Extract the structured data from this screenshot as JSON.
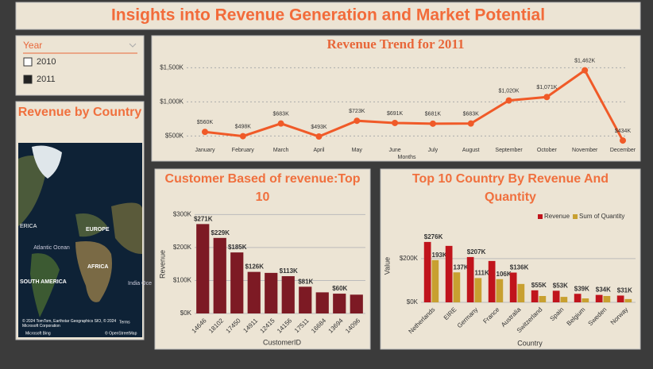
{
  "header": {
    "title": "Insights into Revenue Generation and Market Potential"
  },
  "slicer": {
    "title": "Year",
    "items": [
      "2010",
      "2011"
    ],
    "selected": "2011"
  },
  "map": {
    "title": "Revenue by Country",
    "labels": [
      "Atlantic Ocean",
      "EUROPE",
      "AFRICA",
      "SOUTH AMERICA",
      "India Oce",
      "ERICA"
    ],
    "credits": [
      "© 2024 TomTom, Earthstar Geographics SIO, © 2024 Microsoft Corporation",
      "Terms",
      "© OpenStreetMap",
      "Microsoft Bing"
    ]
  },
  "chart_data": [
    {
      "type": "line",
      "title": "Revenue Trend for 2011",
      "x_label": "Months",
      "categories": [
        "January",
        "February",
        "March",
        "April",
        "May",
        "June",
        "July",
        "August",
        "September",
        "October",
        "November",
        "December"
      ],
      "values": [
        560000,
        498000,
        683000,
        493000,
        723000,
        691000,
        681000,
        683000,
        1020000,
        1071000,
        1462000,
        434000
      ],
      "value_labels": [
        "$560K",
        "$498K",
        "$683K",
        "$493K",
        "$723K",
        "$691K",
        "$681K",
        "$683K",
        "$1,020K",
        "$1,071K",
        "$1,462K",
        "$434K"
      ],
      "color": "#f05a28",
      "ylim": [
        400000,
        1620000
      ],
      "yticks": [
        {
          "value": 500000,
          "label": "$500K"
        },
        {
          "value": 1000000,
          "label": "$1,000K"
        },
        {
          "value": 1500000,
          "label": "$1,500K"
        }
      ],
      "grid": true
    },
    {
      "type": "bar",
      "title": "Customer Based of revenue:Top 10",
      "x_label": "CustomerID",
      "y_label": "Revenue",
      "categories": [
        "14646",
        "18102",
        "17450",
        "14911",
        "12415",
        "14156",
        "17511",
        "16684",
        "13694",
        "14096"
      ],
      "values": [
        271000,
        229000,
        185000,
        126000,
        123000,
        113000,
        81000,
        64000,
        60000,
        57000
      ],
      "value_labels": [
        "$271K",
        "$229K",
        "$185K",
        "$126K",
        null,
        "$113K",
        "$81K",
        null,
        "$60K",
        null
      ],
      "color": "#7d1a24",
      "ylim": [
        0,
        320000
      ],
      "yticks": [
        {
          "value": 0,
          "label": "$0K"
        },
        {
          "value": 100000,
          "label": "$100K"
        },
        {
          "value": 200000,
          "label": "$200K"
        },
        {
          "value": 300000,
          "label": "$300K"
        }
      ],
      "grid": true
    },
    {
      "type": "bar",
      "title": "Top 10 Country By Revenue And Quantity",
      "x_label": "Country",
      "y_label": "Value",
      "categories": [
        "Netherlands",
        "EIRE",
        "Germany",
        "France",
        "Australia",
        "Switzerland",
        "Spain",
        "Belgium",
        "Sweden",
        "Norway"
      ],
      "series": [
        {
          "name": "Revenue",
          "color": "#c0141c",
          "values": [
            276000,
            258000,
            207000,
            189000,
            136000,
            55000,
            53000,
            39000,
            34000,
            31000
          ],
          "value_labels": [
            "$276K",
            null,
            "$207K",
            null,
            "$136K",
            "$55K",
            "$53K",
            "$39K",
            "$34K",
            "$31K"
          ]
        },
        {
          "name": "Sum of Quantity",
          "color": "#c8a030",
          "values": [
            193000,
            137000,
            111000,
            106000,
            84000,
            29000,
            25000,
            18000,
            29000,
            15000
          ],
          "value_labels": [
            "193K",
            "137K",
            "111K",
            "106K",
            null,
            null,
            null,
            null,
            null,
            null
          ]
        }
      ],
      "legend": "top-right",
      "ylim": [
        0,
        330000
      ],
      "yticks": [
        {
          "value": 0,
          "label": "$0K"
        },
        {
          "value": 200000,
          "label": "$200K"
        }
      ],
      "grid": true
    }
  ]
}
